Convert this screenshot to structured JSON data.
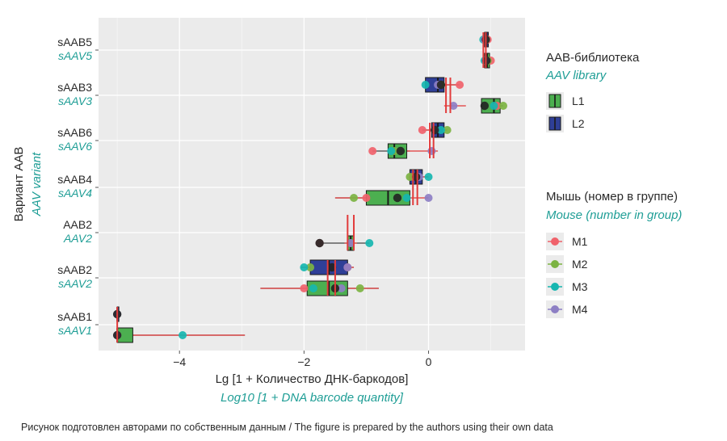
{
  "caption": "Рисунок подготовлен авторами по собственным данным / The figure is prepared by the authors using their own data",
  "colors": {
    "panel_bg": "#ebebeb",
    "grid": "#ffffff",
    "L1_fill": "#4caf50",
    "L2_fill": "#2f3f97",
    "box_edge": "#1a1a1a",
    "median_line": "#e23b3b",
    "M1": "#f0626b",
    "M2": "#7cb342",
    "M3": "#16b6b0",
    "M4": "#8d7fc4",
    "mean_dot": "#222222",
    "italic_teal": "#1f9e96"
  },
  "chart_data": {
    "type": "box",
    "orientation": "horizontal",
    "x_label": "Lg [1 + Количество ДНК-баркодов]",
    "x_label_en": "Log10 [1 + DNA barcode quantity]",
    "y_label": "Вариант ААВ",
    "y_label_en": "AAV variant",
    "x_ticks": [
      -4,
      -2,
      0
    ],
    "x_tick_labels": [
      "−4",
      "−2",
      "0"
    ],
    "xlim": [
      -5.3,
      1.55
    ],
    "grid": true,
    "categories": [
      {
        "label": "sAAB5",
        "label_en": "sAAV5"
      },
      {
        "label": "sAAB3",
        "label_en": "sAAV3"
      },
      {
        "label": "sAAB6",
        "label_en": "sAAV6"
      },
      {
        "label": "sAAB4",
        "label_en": "sAAV4"
      },
      {
        "label": "AAB2",
        "label_en": "AAV2"
      },
      {
        "label": "sAAB2",
        "label_en": "sAAV2"
      },
      {
        "label": "sAAB1",
        "label_en": "sAAV1"
      }
    ],
    "legend_library": {
      "title": "ААВ-библиотека",
      "title_en": "AAV library",
      "entries": [
        "L1",
        "L2"
      ]
    },
    "legend_mouse": {
      "title": "Мышь (номер в группе)",
      "title_en": "Mouse (number in group)",
      "entries": [
        "M1",
        "M2",
        "M3",
        "M4"
      ]
    },
    "boxes": [
      {
        "category": 0,
        "library": "L1",
        "q1": 0.9,
        "q3": 0.98,
        "median": 0.94,
        "wmin": 0.9,
        "wmax": 0.98,
        "mice": {
          "M1": 1.0,
          "M2": 0.95,
          "M3": 0.9,
          "M4": 0.92
        },
        "mean": 0.93,
        "mean2": 0.98,
        "mean_err": [
          0.9,
          0.98
        ]
      },
      {
        "category": 0,
        "library": "L2",
        "q1": 0.9,
        "q3": 0.96,
        "median": 0.93,
        "wmin": 0.9,
        "wmax": 0.96,
        "mice": {
          "M1": 0.95,
          "M2": 0.92,
          "M3": 0.88,
          "M4": 0.9
        },
        "mean": 0.92,
        "mean_err": [
          0.88,
          0.97
        ]
      },
      {
        "category": 1,
        "library": "L2",
        "q1": -0.05,
        "q3": 0.25,
        "median": 0.15,
        "wmin": -0.05,
        "wmax": 0.5,
        "mice": {
          "M1": 0.5,
          "M2": 0.2,
          "M3": -0.05,
          "M4": 0.15
        },
        "mean": 0.2,
        "mean_err": [
          0.05,
          0.5
        ]
      },
      {
        "category": 1,
        "library": "L1",
        "q1": 0.85,
        "q3": 1.15,
        "median": 1.05,
        "wmin": 0.85,
        "wmax": 1.2,
        "mice": {
          "M1": 1.1,
          "M2": 1.2,
          "M3": 1.05,
          "M4": 0.4
        },
        "mean": 0.9,
        "mean_err": [
          0.25,
          0.6
        ]
      },
      {
        "category": 2,
        "library": "L2",
        "q1": 0.05,
        "q3": 0.25,
        "median": 0.15,
        "wmin": -0.1,
        "wmax": 0.3,
        "mice": {
          "M1": -0.1,
          "M2": 0.3,
          "M3": 0.2,
          "M4": 0.1
        },
        "mean": 0.1,
        "mean_err": [
          -0.05,
          0.3
        ]
      },
      {
        "category": 2,
        "library": "L1",
        "q1": -0.65,
        "q3": -0.35,
        "median": -0.55,
        "wmin": -0.9,
        "wmax": -0.3,
        "mice": {
          "M1": -0.9,
          "M2": -0.55,
          "M3": -0.6,
          "M4": 0.05
        },
        "mean": -0.45,
        "mean_err": [
          -0.6,
          0.15
        ]
      },
      {
        "category": 3,
        "library": "L2",
        "q1": -0.3,
        "q3": -0.1,
        "median": -0.2,
        "wmin": -0.3,
        "wmax": 0.0,
        "mice": {
          "M1": -0.25,
          "M2": -0.3,
          "M3": 0.0,
          "M4": -0.15
        },
        "mean": -0.2,
        "mean_err": [
          -0.3,
          0.0
        ]
      },
      {
        "category": 3,
        "library": "L1",
        "q1": -1.0,
        "q3": -0.3,
        "median": -0.65,
        "wmin": -1.5,
        "wmax": -0.3,
        "mice": {
          "M1": -1.0,
          "M2": -1.2,
          "M3": -0.35,
          "M4": 0.0
        },
        "mean": -0.5,
        "mean_err": [
          -1.5,
          0.0
        ]
      },
      {
        "category": 4,
        "library": "L1",
        "q1": -1.3,
        "q3": -1.2,
        "median": -1.25,
        "wmin": -1.75,
        "wmax": -0.95,
        "mice": {
          "M1": -1.75,
          "M2": -1.25,
          "M3": -0.95,
          "M4": -1.25
        },
        "mean": -1.75,
        "mean_err": [
          -1.35,
          -1.15
        ]
      },
      {
        "category": 5,
        "library": "L2",
        "q1": -1.9,
        "q3": -1.3,
        "median": -1.6,
        "wmin": -2.05,
        "wmax": -1.2,
        "mice": {
          "M1": -1.3,
          "M2": -1.9,
          "M3": -2.0,
          "M4": -1.3
        },
        "mean": -1.55,
        "mean_err": [
          -2.0,
          -1.2
        ]
      },
      {
        "category": 5,
        "library": "L1",
        "q1": -1.95,
        "q3": -1.3,
        "median": -1.6,
        "wmin": -2.7,
        "wmax": -0.8,
        "mice": {
          "M1": -2.0,
          "M2": -1.1,
          "M3": -1.85,
          "M4": -1.4
        },
        "mean": -1.5,
        "mean_err": [
          -2.7,
          -0.8
        ]
      },
      {
        "category": 6,
        "library": "L2",
        "q1": -5.0,
        "q3": -5.0,
        "median": -5.0,
        "wmin": -5.0,
        "wmax": -5.0,
        "mice": {
          "M1": -5.0,
          "M2": -5.0,
          "M3": -5.0,
          "M4": -5.0
        },
        "mean": -5.0,
        "mean_err": [
          -5.0,
          -5.0
        ]
      },
      {
        "category": 6,
        "library": "L1",
        "q1": -5.0,
        "q3": -4.75,
        "median": -5.0,
        "wmin": -5.0,
        "wmax": -2.95,
        "mice": {
          "M1": -5.0,
          "M2": -5.0,
          "M3": -3.95,
          "M4": -5.0
        },
        "mean": -5.0,
        "mean_err": [
          -5.0,
          -2.95
        ]
      }
    ],
    "median_marks": [
      {
        "category": 0,
        "values": [
          0.88,
          0.92
        ]
      },
      {
        "category": 1,
        "values": [
          0.28,
          0.35
        ]
      },
      {
        "category": 2,
        "values": [
          0.02,
          0.08
        ]
      },
      {
        "category": 3,
        "values": [
          -0.25,
          -0.18
        ]
      },
      {
        "category": 4,
        "values": [
          -1.3,
          -1.2
        ]
      },
      {
        "category": 5,
        "values": [
          -1.62,
          -1.5
        ]
      },
      {
        "category": 6,
        "values": [
          -5.0
        ]
      }
    ]
  }
}
